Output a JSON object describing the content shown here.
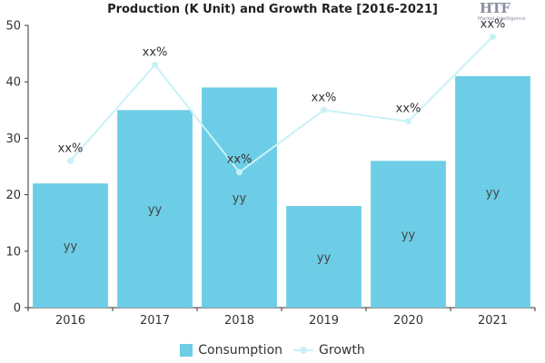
{
  "chart_data": {
    "type": "bar",
    "title": "Production (K Unit) and Growth Rate [2016-2021]",
    "categories": [
      "2016",
      "2017",
      "2018",
      "2019",
      "2020",
      "2021"
    ],
    "series": [
      {
        "name": "Consumption",
        "type": "bar",
        "values": [
          22,
          35,
          39,
          18,
          26,
          41
        ],
        "labels": [
          "yy",
          "yy",
          "yy",
          "yy",
          "yy",
          "yy"
        ]
      },
      {
        "name": "Growth",
        "type": "line",
        "values": [
          26,
          43,
          24,
          35,
          33,
          48
        ],
        "labels": [
          "xx%",
          "xx%",
          "xx%",
          "xx%",
          "xx%",
          "xx%"
        ]
      }
    ],
    "ylim": [
      0,
      50
    ],
    "yticks": [
      0,
      10,
      20,
      30,
      40,
      50
    ],
    "grid": false,
    "legend": "bottom",
    "colors": {
      "bar": "#6dcde6",
      "line": "#c8f1f6"
    }
  },
  "logo": {
    "text": "HTF",
    "subtitle": "Market Intelligence"
  }
}
